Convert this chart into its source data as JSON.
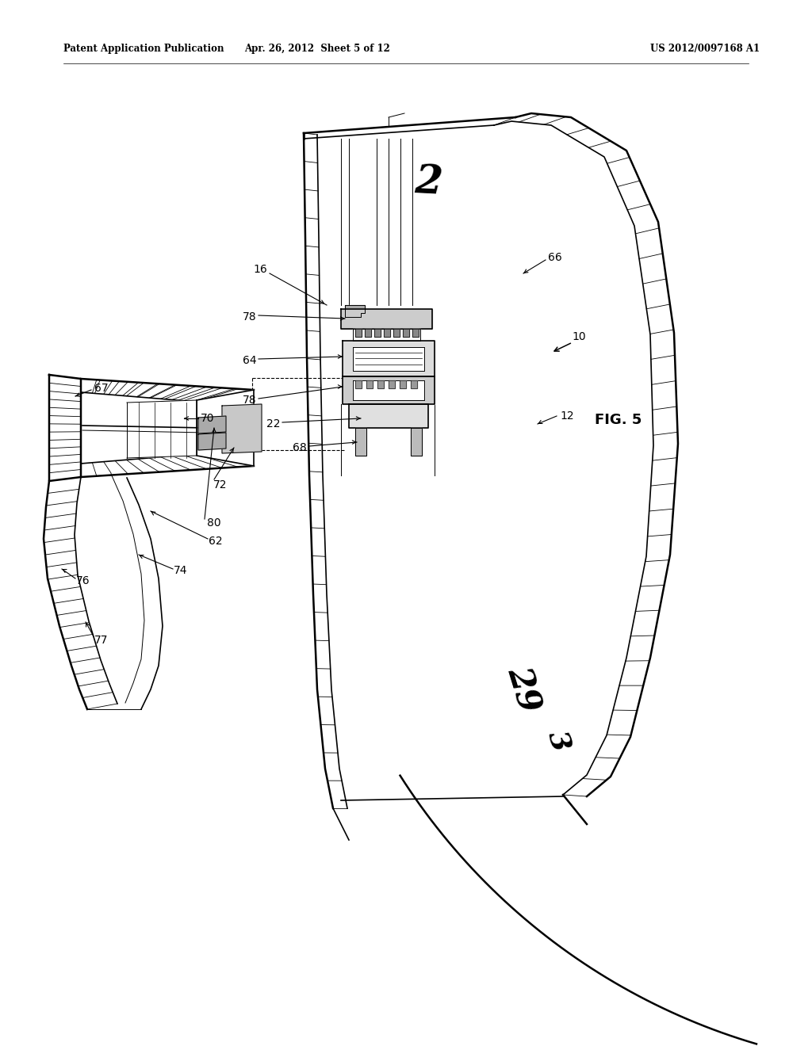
{
  "bg_color": "#ffffff",
  "header_left": "Patent Application Publication",
  "header_center": "Apr. 26, 2012  Sheet 5 of 12",
  "header_right": "US 2012/0097168 A1",
  "fig_label": "FIG. 5",
  "lw_thick": 1.8,
  "lw_med": 1.2,
  "lw_thin": 0.7,
  "hatch_lw": 0.6,
  "label_fs": 10,
  "header_fs": 8.5,
  "tube_label_fs": 36,
  "fig5_fs": 13
}
